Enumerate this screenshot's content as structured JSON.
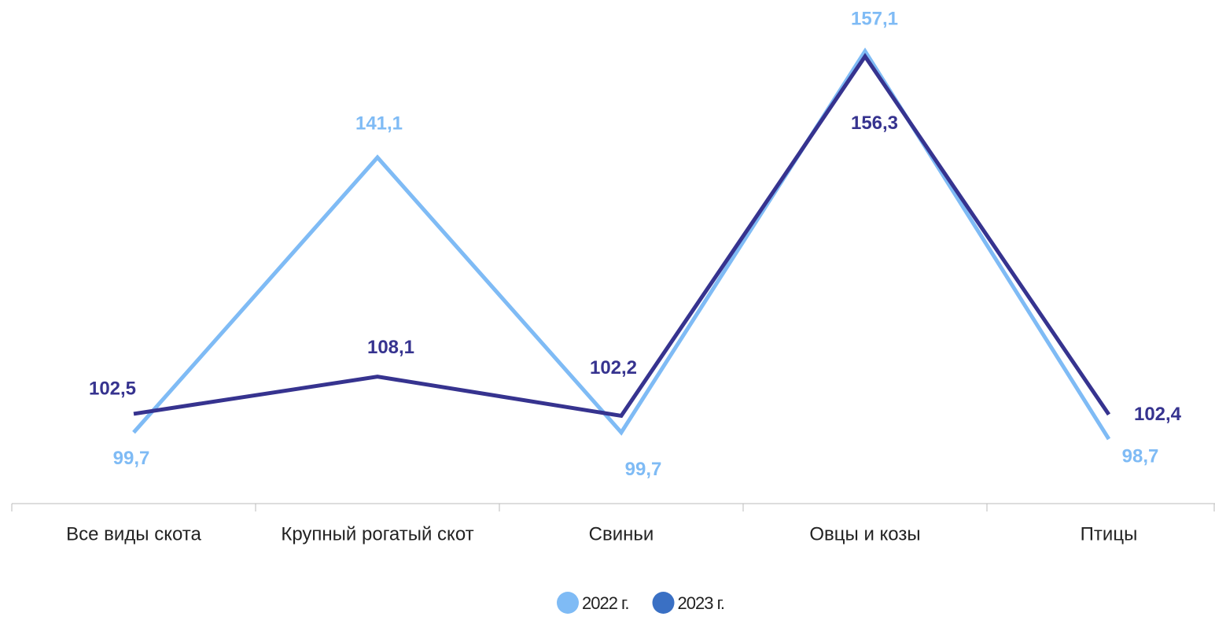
{
  "chart_data": {
    "type": "line",
    "categories": [
      "Все виды скота",
      "Крупный рогатый скот",
      "Свиньи",
      "Овцы и козы",
      "Птицы"
    ],
    "series": [
      {
        "name": "2022 г.",
        "color": "#7fbbf5",
        "legend_color": "#7fbbf5",
        "values": [
          99.7,
          141.1,
          99.7,
          157.1,
          98.7
        ],
        "value_labels": [
          "99,7",
          "141,1",
          "99,7",
          "157,1",
          "98,7"
        ]
      },
      {
        "name": "2023 г.",
        "color": "#36338f",
        "legend_color": "#3a70c4",
        "values": [
          102.5,
          108.1,
          102.2,
          156.3,
          102.4
        ],
        "value_labels": [
          "102,5",
          "108,1",
          "102,2",
          "156,3",
          "102,4"
        ]
      }
    ]
  }
}
